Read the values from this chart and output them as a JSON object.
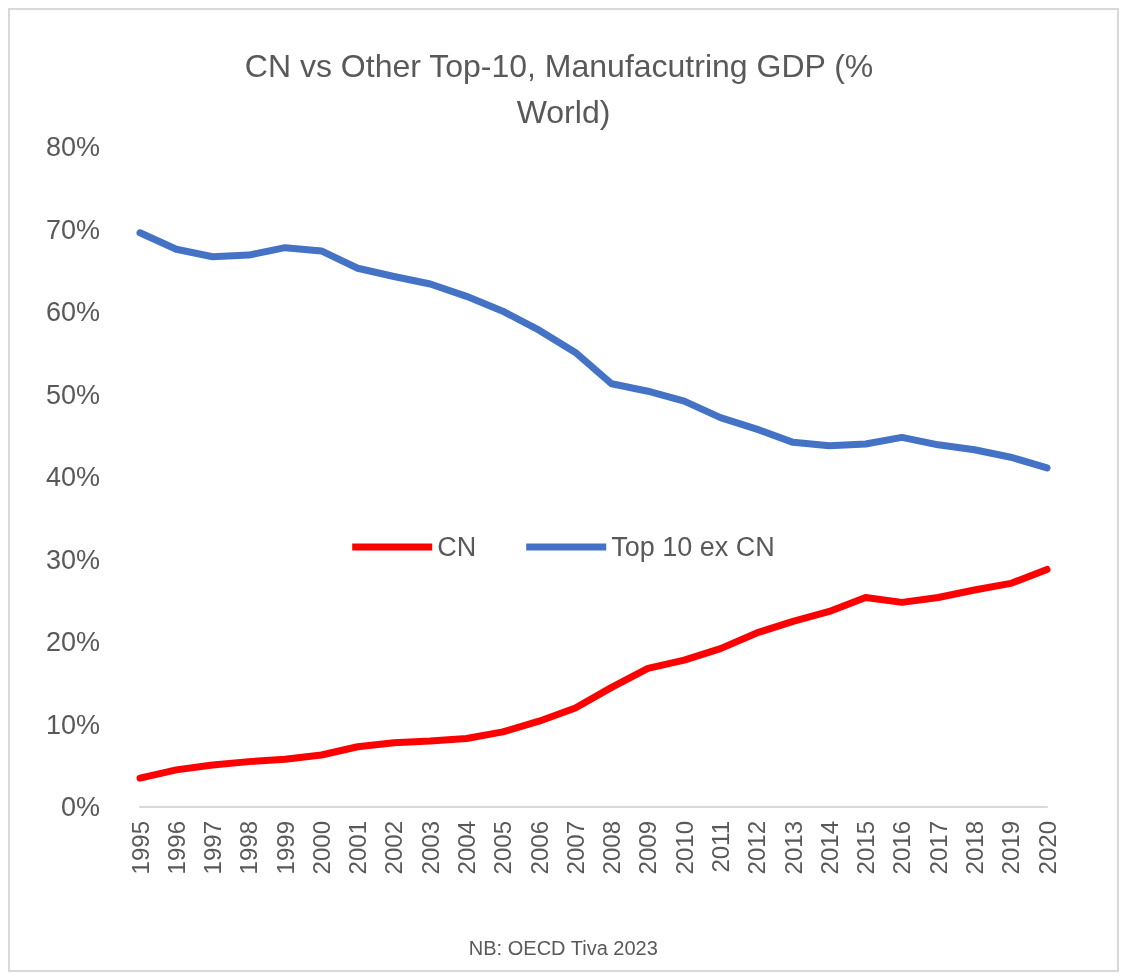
{
  "chart_data": {
    "type": "line",
    "title": "CN vs Other Top-10, Manufacutring GDP (% World)",
    "categories": [
      "1995",
      "1996",
      "1997",
      "1998",
      "1999",
      "2000",
      "2001",
      "2002",
      "2003",
      "2004",
      "2005",
      "2006",
      "2007",
      "2008",
      "2009",
      "2010",
      "2011",
      "2012",
      "2013",
      "2014",
      "2015",
      "2016",
      "2017",
      "2018",
      "2019",
      "2020"
    ],
    "series": [
      {
        "name": "CN",
        "color": "#ff0000",
        "values": [
          3.5,
          4.5,
          5.1,
          5.5,
          5.8,
          6.3,
          7.3,
          7.8,
          8.0,
          8.3,
          9.1,
          10.4,
          12.0,
          14.5,
          16.8,
          17.8,
          19.2,
          21.1,
          22.5,
          23.7,
          25.4,
          24.8,
          25.4,
          26.3,
          27.1,
          28.8
        ]
      },
      {
        "name": "Top 10 ex CN",
        "color": "#4472c4",
        "values": [
          69.6,
          67.6,
          66.7,
          66.9,
          67.8,
          67.4,
          65.3,
          64.3,
          63.4,
          61.9,
          60.1,
          57.8,
          55.1,
          51.3,
          50.4,
          49.2,
          47.2,
          45.8,
          44.2,
          43.8,
          44.0,
          44.8,
          43.9,
          43.3,
          42.4,
          41.1
        ]
      }
    ],
    "ylim": [
      0,
      80
    ],
    "yticks": [
      {
        "value": 0,
        "label": "0%"
      },
      {
        "value": 10,
        "label": "10%"
      },
      {
        "value": 20,
        "label": "20%"
      },
      {
        "value": 30,
        "label": "30%"
      },
      {
        "value": 40,
        "label": "40%"
      },
      {
        "value": 50,
        "label": "50%"
      },
      {
        "value": 60,
        "label": "60%"
      },
      {
        "value": 70,
        "label": "70%"
      },
      {
        "value": 80,
        "label": "80%"
      }
    ],
    "grid": false,
    "legend": "center",
    "marker": "none",
    "line_style": "solid",
    "annotations": [
      "NB: OECD Tiva 2023"
    ]
  }
}
